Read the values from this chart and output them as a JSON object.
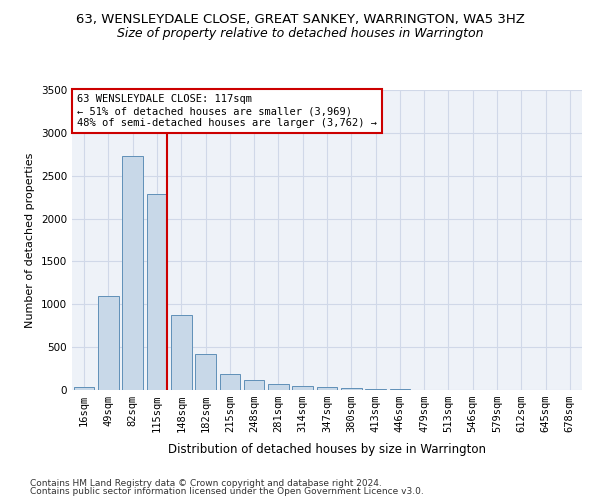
{
  "title": "63, WENSLEYDALE CLOSE, GREAT SANKEY, WARRINGTON, WA5 3HZ",
  "subtitle": "Size of property relative to detached houses in Warrington",
  "xlabel": "Distribution of detached houses by size in Warrington",
  "ylabel": "Number of detached properties",
  "categories": [
    "16sqm",
    "49sqm",
    "82sqm",
    "115sqm",
    "148sqm",
    "182sqm",
    "215sqm",
    "248sqm",
    "281sqm",
    "314sqm",
    "347sqm",
    "380sqm",
    "413sqm",
    "446sqm",
    "479sqm",
    "513sqm",
    "546sqm",
    "579sqm",
    "612sqm",
    "645sqm",
    "678sqm"
  ],
  "values": [
    40,
    1100,
    2730,
    2290,
    880,
    420,
    185,
    115,
    65,
    50,
    35,
    25,
    15,
    10,
    5,
    3,
    2,
    2,
    2,
    1,
    1
  ],
  "bar_color": "#c8d8e8",
  "bar_edge_color": "#6090b8",
  "property_sqm": 117,
  "annotation_line1": "63 WENSLEYDALE CLOSE: 117sqm",
  "annotation_line2": "← 51% of detached houses are smaller (3,969)",
  "annotation_line3": "48% of semi-detached houses are larger (3,762) →",
  "annotation_box_color": "#ffffff",
  "annotation_box_edge_color": "#cc0000",
  "ylim": [
    0,
    3500
  ],
  "yticks": [
    0,
    500,
    1000,
    1500,
    2000,
    2500,
    3000,
    3500
  ],
  "grid_color": "#d0d8e8",
  "background_color": "#eef2f8",
  "footer_line1": "Contains HM Land Registry data © Crown copyright and database right 2024.",
  "footer_line2": "Contains public sector information licensed under the Open Government Licence v3.0.",
  "title_fontsize": 9.5,
  "subtitle_fontsize": 9,
  "xlabel_fontsize": 8.5,
  "ylabel_fontsize": 8,
  "tick_fontsize": 7.5,
  "footer_fontsize": 6.5
}
